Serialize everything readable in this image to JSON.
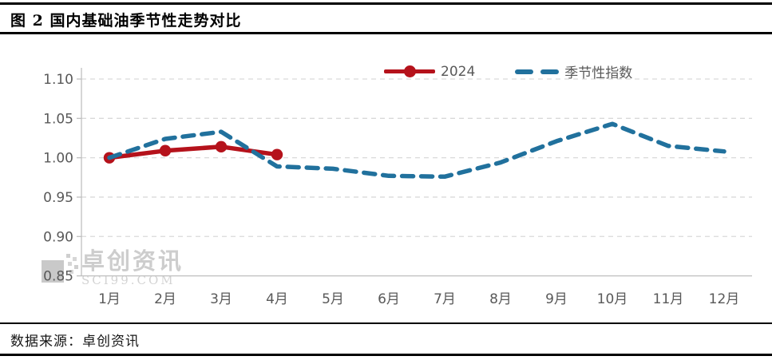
{
  "title": "图 2 国内基础油季节性走势对比",
  "source": "数据来源：卓创资讯",
  "watermark": {
    "name": "卓创资讯",
    "site": "SCI99.COM"
  },
  "legend": [
    {
      "label": "2024",
      "color": "#b5121b",
      "style": "solid-line-with-marker"
    },
    {
      "label": "季节性指数",
      "color": "#21719d",
      "style": "dashed-line"
    }
  ],
  "colors": {
    "series_2024": "#b5121b",
    "series_seasonal": "#21719d",
    "gridline": "#d9d9d9",
    "axis": "#bfbfbf",
    "axis_label": "#595959",
    "rule": "#000000",
    "watermark": "#cdcdcd"
  },
  "chart_data": {
    "type": "line",
    "title": "",
    "xlabel": "",
    "ylabel": "",
    "categories": [
      "1月",
      "2月",
      "3月",
      "4月",
      "5月",
      "6月",
      "7月",
      "8月",
      "9月",
      "10月",
      "11月",
      "12月"
    ],
    "series": [
      {
        "name": "2024",
        "color": "#b5121b",
        "line_style": "solid",
        "marker": "circle",
        "values": [
          1.0,
          1.009,
          1.014,
          1.004
        ]
      },
      {
        "name": "季节性指数",
        "color": "#21719d",
        "line_style": "dashed",
        "marker": "none",
        "values": [
          1.0,
          1.024,
          1.033,
          0.989,
          0.986,
          0.977,
          0.976,
          0.994,
          1.021,
          1.043,
          1.015,
          1.008
        ]
      }
    ],
    "ylim": [
      0.85,
      1.1
    ],
    "yticks": [
      0.85,
      0.9,
      0.95,
      1.0,
      1.05,
      1.1
    ],
    "grid": true,
    "gridline_style": "dashed",
    "legend_position": "top"
  }
}
